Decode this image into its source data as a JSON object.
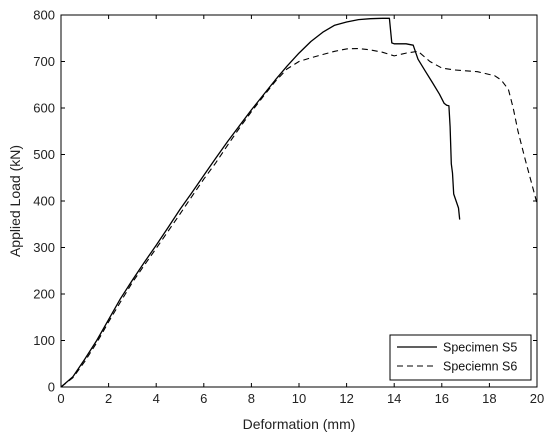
{
  "chart_data": {
    "type": "line",
    "xlabel": "Deformation (mm)",
    "ylabel": "Applied Load (kN)",
    "xlim": [
      0,
      20
    ],
    "ylim": [
      0,
      800
    ],
    "xticks": [
      0,
      2,
      4,
      6,
      8,
      10,
      12,
      14,
      16,
      18,
      20
    ],
    "yticks": [
      0,
      100,
      200,
      300,
      400,
      500,
      600,
      700,
      800
    ],
    "grid": false,
    "legend_position": "bottom-right",
    "series": [
      {
        "name": "Specimen S5",
        "line_style": "solid",
        "color": "#000000",
        "x": [
          0,
          0.5,
          1,
          1.5,
          2,
          2.5,
          3,
          3.5,
          4,
          4.5,
          5,
          5.5,
          6,
          6.5,
          7,
          7.5,
          8,
          8.5,
          9,
          9.5,
          10,
          10.5,
          11,
          11.5,
          12,
          12.5,
          13,
          13.5,
          13.8,
          13.9,
          14.0,
          14.5,
          14.8,
          15.0,
          15.3,
          15.6,
          15.9,
          16.1,
          16.2,
          16.3,
          16.35,
          16.4,
          16.45,
          16.5,
          16.6,
          16.7,
          16.75
        ],
        "y": [
          0,
          22,
          60,
          100,
          145,
          190,
          230,
          268,
          305,
          343,
          382,
          418,
          455,
          492,
          528,
          562,
          596,
          628,
          660,
          690,
          718,
          743,
          763,
          778,
          785,
          790,
          792,
          793,
          793,
          740,
          738,
          738,
          735,
          705,
          680,
          655,
          630,
          610,
          606,
          605,
          560,
          480,
          460,
          415,
          400,
          385,
          360
        ]
      },
      {
        "name": "Speciemn S6",
        "line_style": "dashed",
        "color": "#000000",
        "x": [
          0,
          0.5,
          1,
          1.5,
          2,
          2.5,
          3,
          3.5,
          4,
          4.5,
          5,
          5.5,
          6,
          6.5,
          7,
          7.5,
          8,
          8.5,
          9,
          9.5,
          10,
          10.5,
          11,
          11.5,
          12,
          12.5,
          13,
          13.5,
          14,
          14.5,
          15,
          15.5,
          16,
          16.5,
          17,
          17.5,
          18,
          18.2,
          18.5,
          18.8,
          19.0,
          19.2,
          19.5,
          20
        ],
        "y": [
          0,
          20,
          55,
          95,
          140,
          183,
          225,
          262,
          298,
          335,
          372,
          410,
          447,
          482,
          520,
          557,
          592,
          625,
          657,
          684,
          700,
          708,
          715,
          722,
          727,
          728,
          725,
          720,
          712,
          718,
          722,
          700,
          686,
          682,
          680,
          678,
          672,
          670,
          660,
          640,
          600,
          550,
          490,
          395
        ]
      }
    ]
  }
}
